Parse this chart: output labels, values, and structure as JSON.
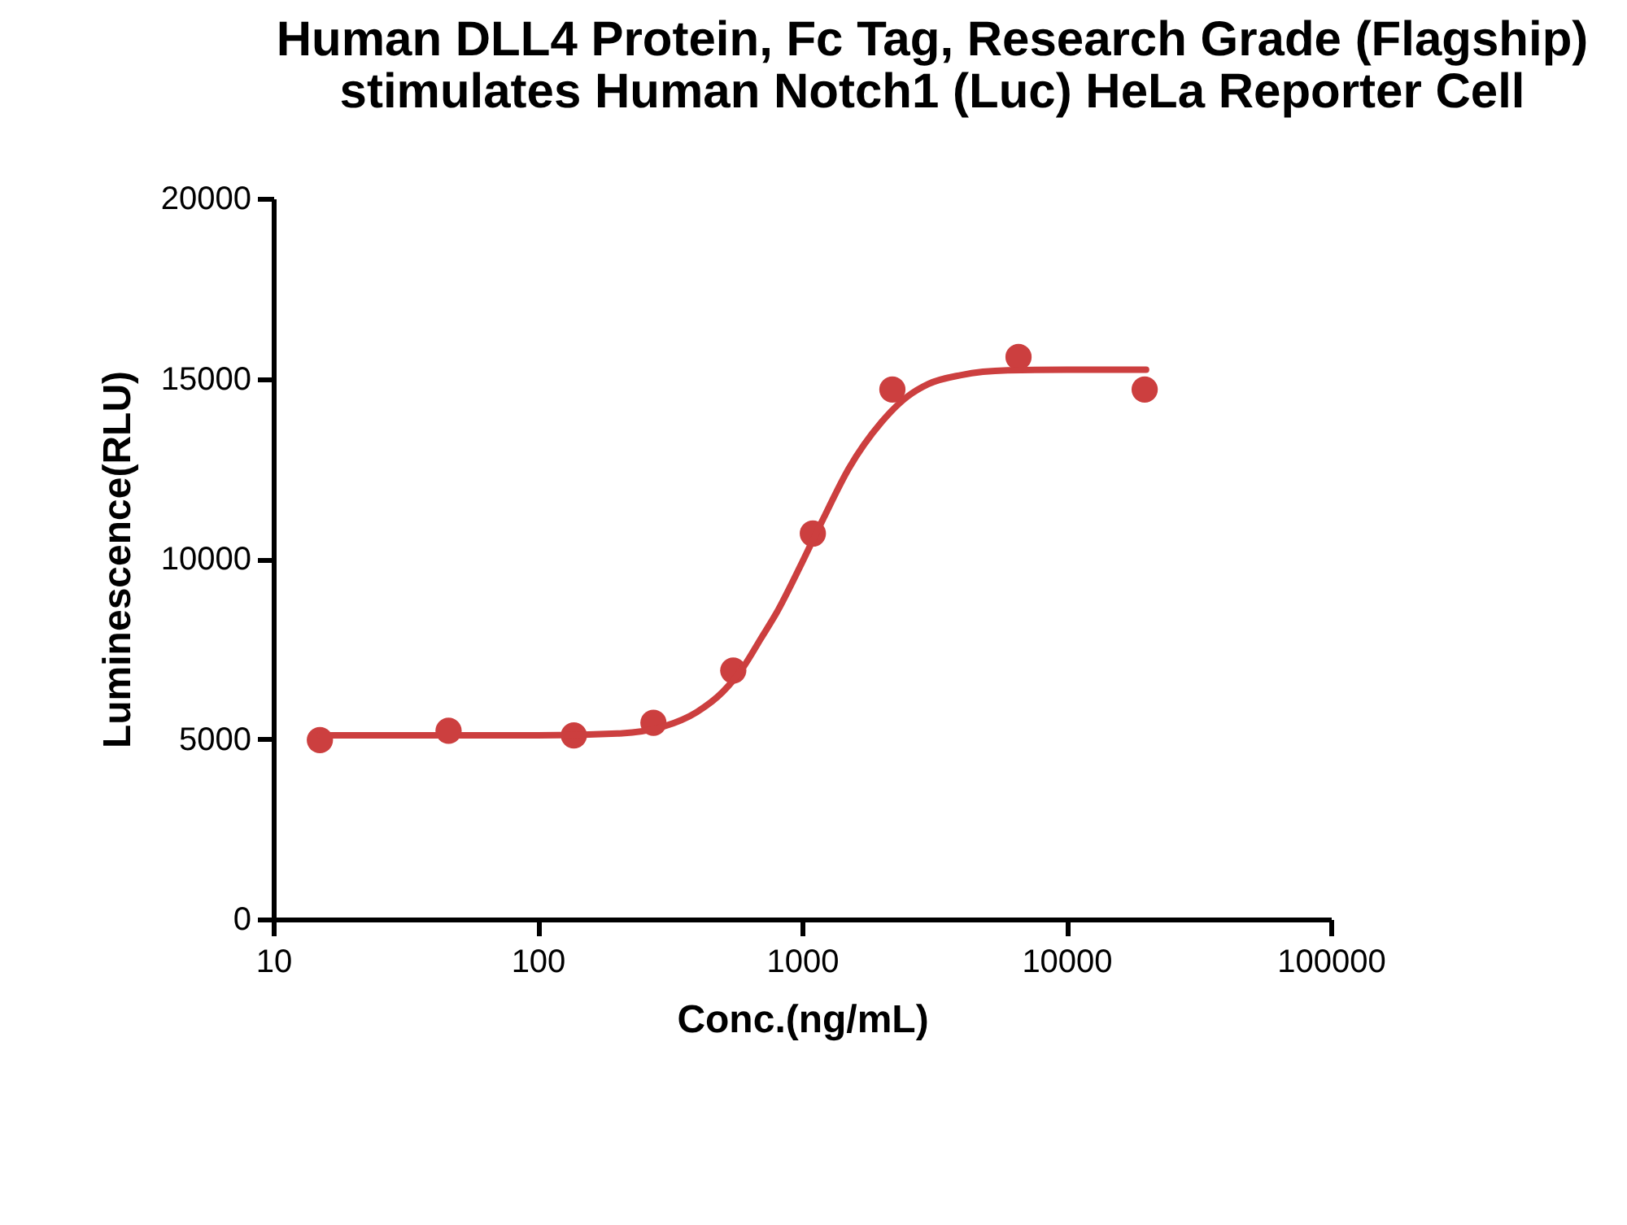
{
  "chart_data": {
    "type": "scatter",
    "title": "Human DLL4 Protein, Fc Tag, Research Grade (Flagship)\nstimulates Human Notch1 (Luc) HeLa Reporter Cell",
    "xlabel": "Conc.(ng/mL)",
    "ylabel": "Luminescence(RLU)",
    "log": "x",
    "grid": false,
    "marker": "circle",
    "xlim": [
      10,
      100000
    ],
    "xticks": [
      10,
      100,
      1000,
      10000,
      100000
    ],
    "ylim": [
      0,
      20000
    ],
    "yticks": [
      0,
      5000,
      10000,
      15000,
      20000
    ],
    "series": [
      {
        "type": "scatter",
        "color": "#cc3f3f",
        "x": [
          15,
          46,
          137,
          274,
          549,
          1098,
          2195,
          6585,
          19756
        ],
        "values": [
          4970,
          5230,
          5100,
          5450,
          6900,
          10700,
          14700,
          15600,
          14700
        ]
      },
      {
        "type": "line",
        "color": "#cc3f3f",
        "line_style": "solid",
        "marker": "none",
        "x": [
          15,
          100,
          200,
          300,
          400,
          500,
          600,
          700,
          800,
          1000,
          1200,
          1500,
          2000,
          2500,
          3000,
          4000,
          6000,
          10000,
          20000
        ],
        "values": [
          5100,
          5100,
          5150,
          5350,
          5750,
          6300,
          7000,
          7800,
          8500,
          9900,
          11100,
          12500,
          13800,
          14500,
          14850,
          15100,
          15230,
          15250,
          15250
        ]
      }
    ]
  }
}
